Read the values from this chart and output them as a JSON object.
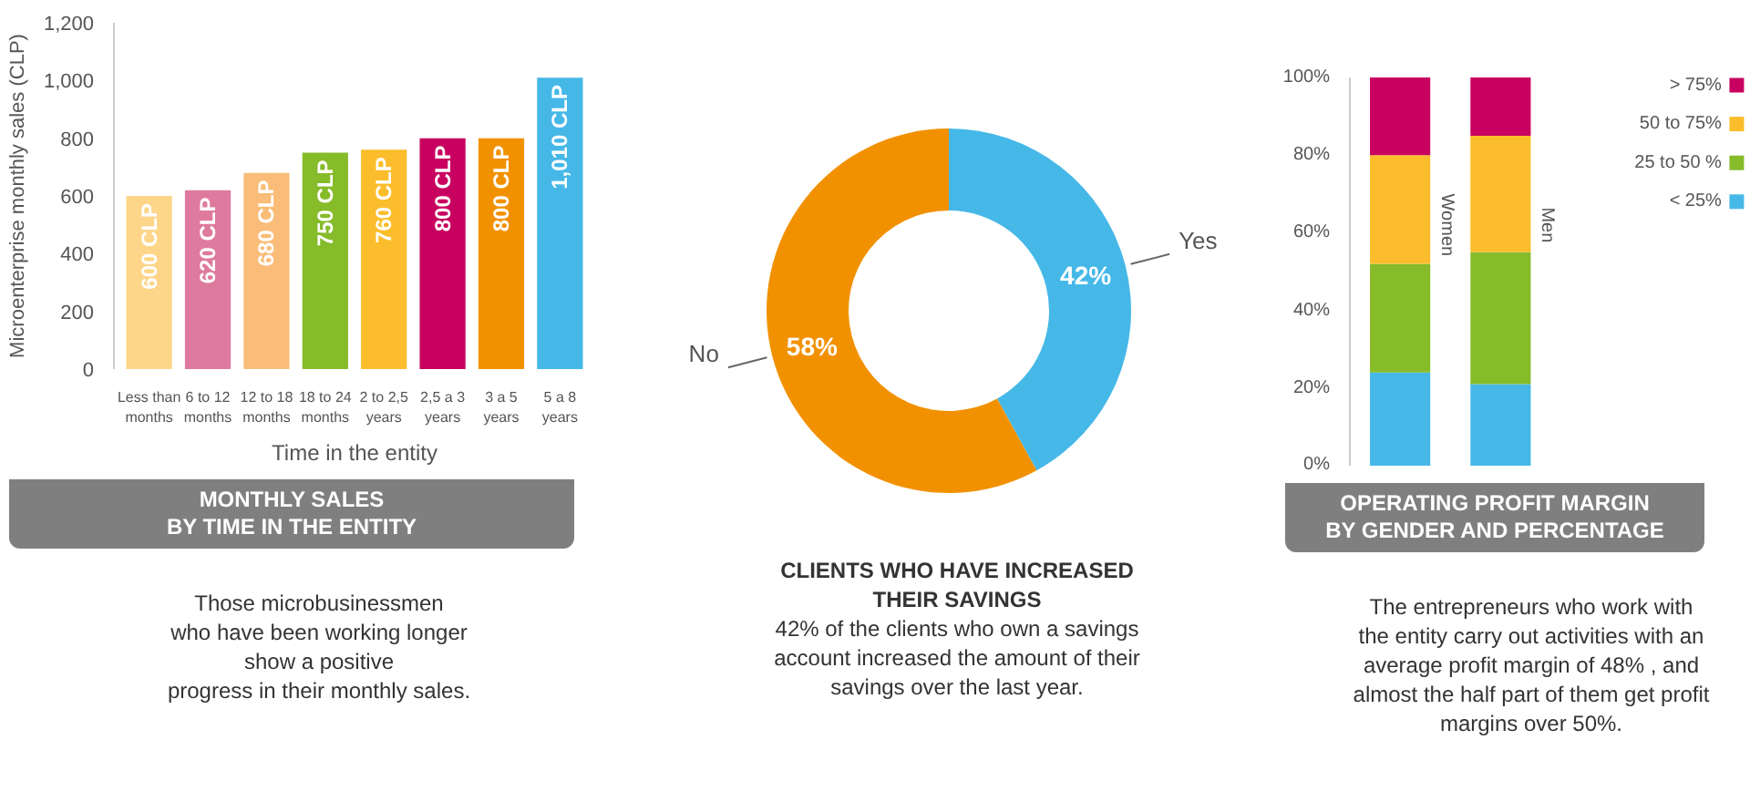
{
  "chart_data": [
    {
      "type": "bar",
      "title": "MONTHLY SALES\nBY TIME IN THE ENTITY",
      "xlabel": "Time in the entity",
      "ylabel": "Microenterprise monthly sales (CLP)",
      "categories": [
        "Less than\nmonths",
        "6 to 12\nmonths",
        "12 to 18\nmonths",
        "18 to 24\nmonths",
        "2 to 2,5\nyears",
        "2,5 a 3\nyears",
        "3 a 5\nyears",
        "5 a 8\nyears"
      ],
      "values": [
        600,
        620,
        680,
        750,
        760,
        800,
        800,
        1010
      ],
      "colors": [
        "#fdd68a",
        "#de7a9e",
        "#f9bd79",
        "#86bb2a",
        "#fbbd2b",
        "#c8005f",
        "#f29100",
        "#46b8e8"
      ],
      "value_labels": [
        "600 CLP",
        "620 CLP",
        "680 CLP",
        "750 CLP",
        "760 CLP",
        "800 CLP",
        "800 CLP",
        "1,010 CLP"
      ],
      "ylim": [
        0,
        1200
      ],
      "yticks": [
        0,
        200,
        400,
        600,
        800,
        {
          "value": 1000,
          "label": "1,000"
        },
        {
          "value": 1200,
          "label": "1,200"
        }
      ],
      "grid": false,
      "annotations": [
        "Those microbusinessmen\nwho have been working longer\nshow a positive\nprogress in their monthly sales."
      ]
    },
    {
      "type": "donut",
      "title": "CLIENTS WHO HAVE INCREASED\nTHEIR SAVINGS",
      "categories": [
        "Yes",
        "No"
      ],
      "values": [
        42,
        58
      ],
      "colors": [
        "#46b8e8",
        "#f29100"
      ],
      "value_labels": [
        "42%",
        "58%"
      ],
      "annotations": [
        "42% of the clients who own a savings\naccount increased the amount of their\nsavings over the last year."
      ]
    },
    {
      "type": "bar",
      "stacked": true,
      "title": "OPERATING PROFIT MARGIN\nBY GENDER AND PERCENTAGE",
      "categories": [
        "Women",
        "Men"
      ],
      "series": [
        {
          "name": "< 25%",
          "color": "#46b8e8",
          "values": [
            24,
            21
          ]
        },
        {
          "name": "25 to 50 %",
          "color": "#86bb2a",
          "values": [
            28,
            34
          ]
        },
        {
          "name": "50 to 75%",
          "color": "#fbbd2b",
          "values": [
            28,
            30
          ]
        },
        {
          "name": "> 75%",
          "color": "#c8005f",
          "values": [
            20,
            15
          ]
        }
      ],
      "ylim": [
        0,
        100
      ],
      "yticks": [
        {
          "value": 0,
          "label": "0%"
        },
        {
          "value": 20,
          "label": "20%"
        },
        {
          "value": 40,
          "label": "40%"
        },
        {
          "value": 60,
          "label": "60%"
        },
        {
          "value": 80,
          "label": "80%"
        },
        {
          "value": 100,
          "label": "100%"
        }
      ],
      "grid": false,
      "legend": "top right",
      "annotations": [
        "The entrepreneurs who work with\nthe entity carry out activities with an\naverage profit margin of 48% , and\nalmost the half part of them get profit\nmargins over 50%."
      ]
    }
  ]
}
